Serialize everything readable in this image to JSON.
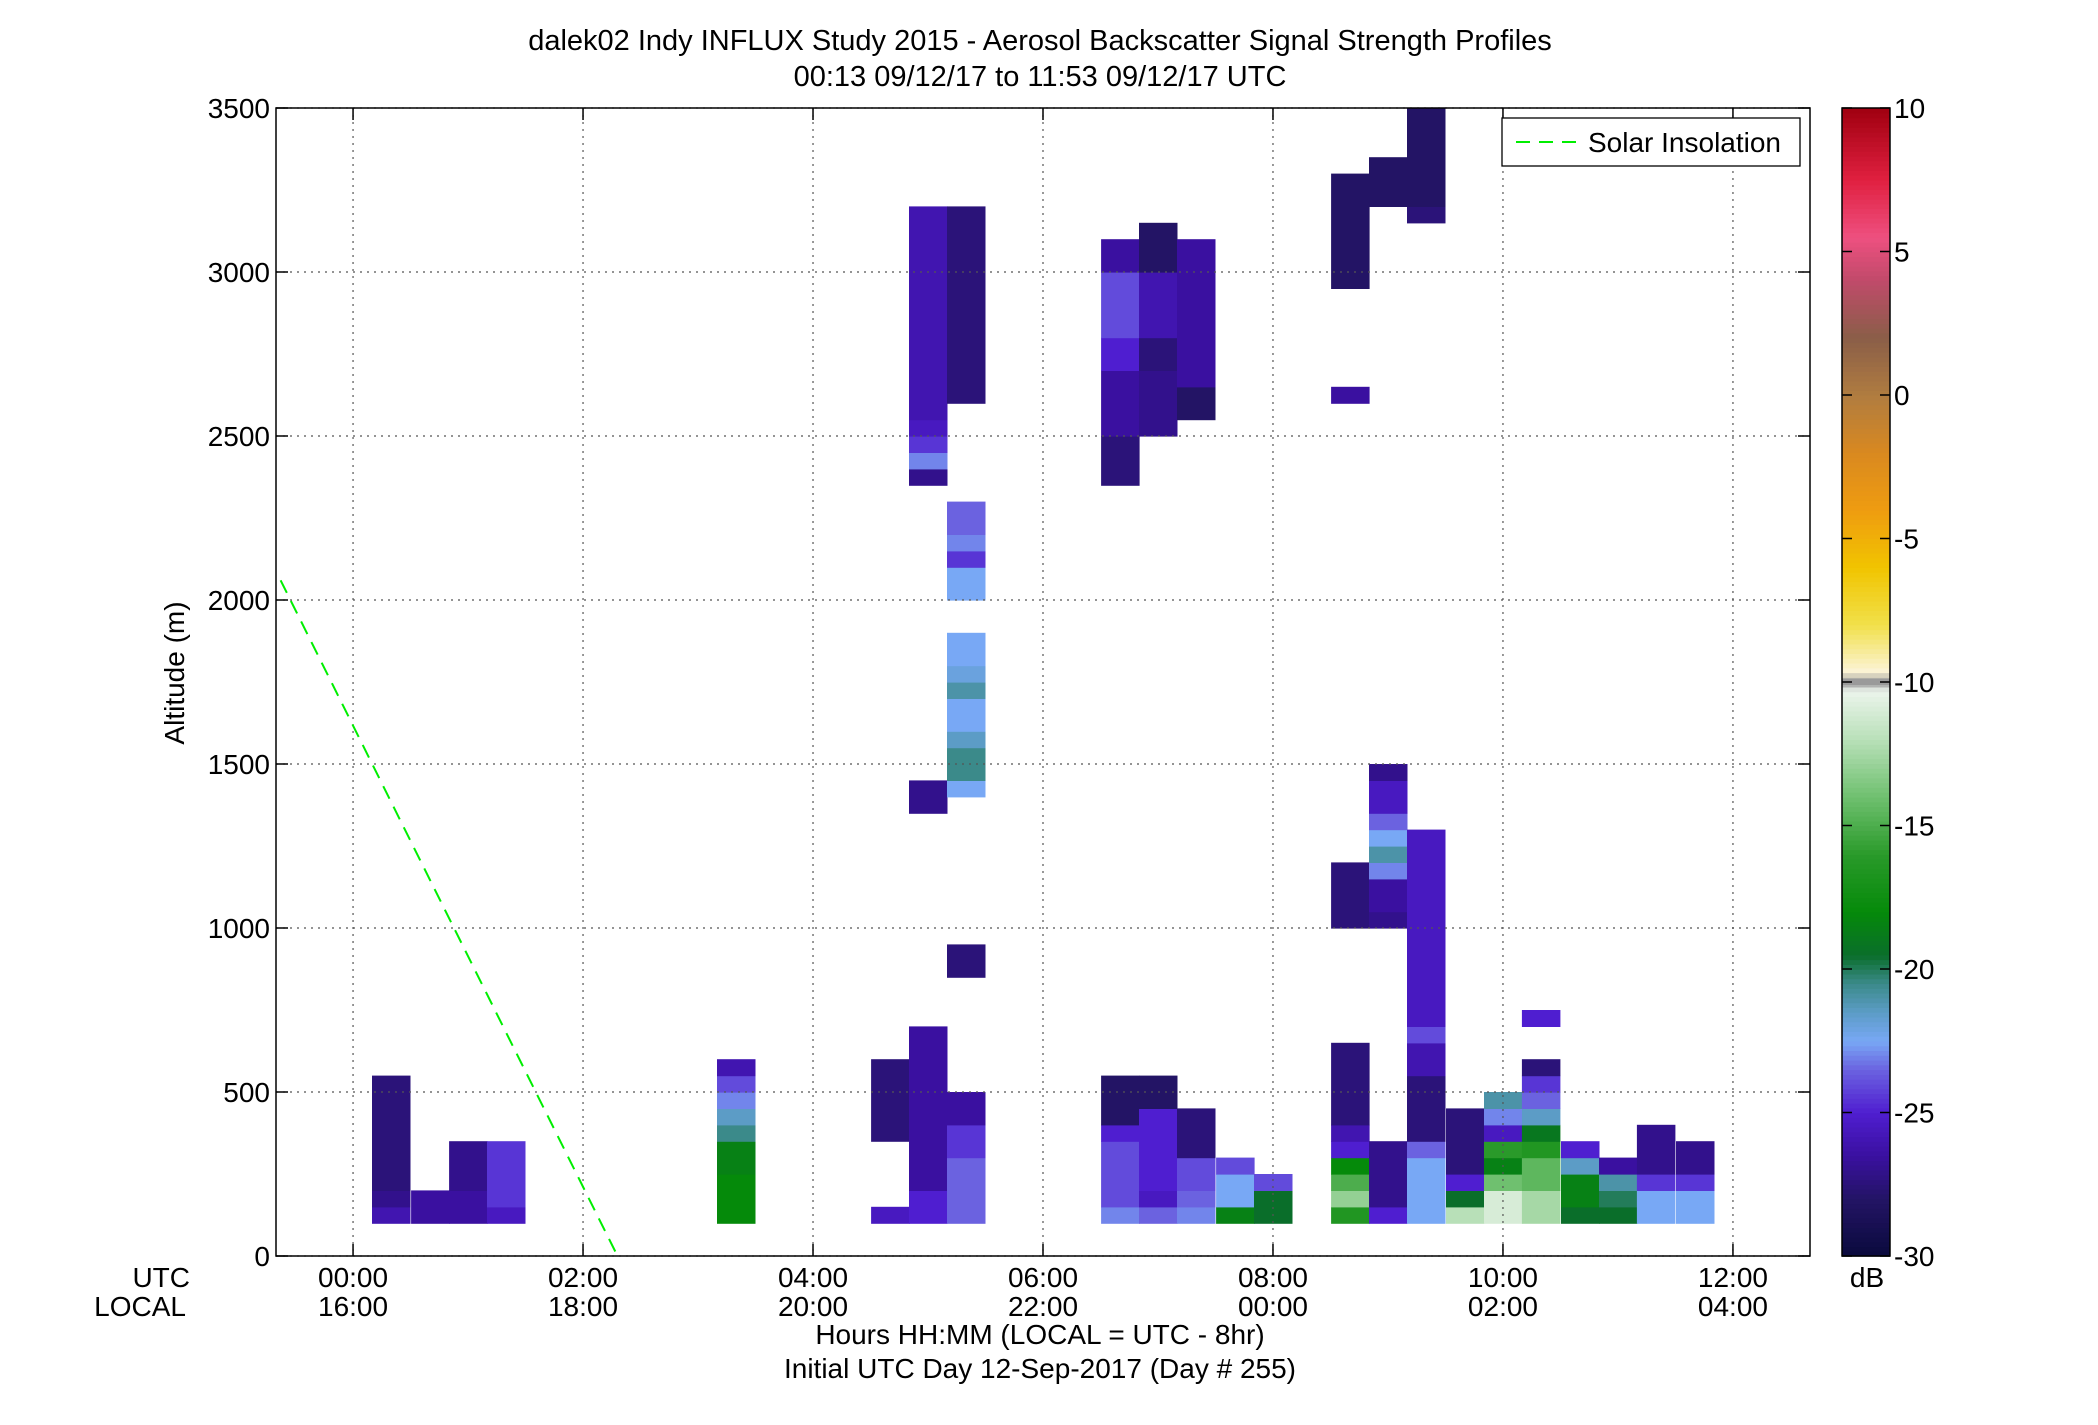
{
  "chart_data": {
    "type": "heatmap",
    "title": "dalek02 Indy INFLUX Study 2015 - Aerosol Backscatter Signal Strength Profiles",
    "subtitle": "00:13 09/12/17 to 11:53 09/12/17  UTC",
    "ylabel": "Altitude (m)",
    "xlabel": "Hours HH:MM  (LOCAL = UTC - 8hr)",
    "footer": "Initial UTC Day 12-Sep-2017 (Day # 255)",
    "xlim_hours_utc": [
      -0.67,
      12.67
    ],
    "ylim": [
      0,
      3500
    ],
    "y_ticks": [
      0,
      500,
      1000,
      1500,
      2000,
      2500,
      3000,
      3500
    ],
    "x_ticks": [
      {
        "hour": 0,
        "utc": "00:00",
        "local": "16:00"
      },
      {
        "hour": 2,
        "utc": "02:00",
        "local": "18:00"
      },
      {
        "hour": 4,
        "utc": "04:00",
        "local": "20:00"
      },
      {
        "hour": 6,
        "utc": "06:00",
        "local": "22:00"
      },
      {
        "hour": 8,
        "utc": "08:00",
        "local": "00:00"
      },
      {
        "hour": 10,
        "utc": "10:00",
        "local": "02:00"
      },
      {
        "hour": 12,
        "utc": "12:00",
        "local": "04:00"
      }
    ],
    "x_row_labels": {
      "utc": "UTC",
      "local": "LOCAL"
    },
    "grid": true,
    "legend": {
      "position": "top-right",
      "entries": [
        "Solar Insolation"
      ]
    },
    "solar_insolation": {
      "color": "#00ee00",
      "x_hours": [
        -0.63,
        2.3
      ],
      "y_m": [
        2060,
        0
      ]
    },
    "colorbar": {
      "unit": "dB",
      "range": [
        -30,
        10
      ],
      "ticks": [
        10,
        5,
        0,
        -5,
        -10,
        -15,
        -20,
        -25,
        -30
      ],
      "highlight_dB": -10,
      "stops": [
        {
          "v": -30,
          "c": "#0a0a3c"
        },
        {
          "v": -28,
          "c": "#231465"
        },
        {
          "v": -26.5,
          "c": "#3a10a0"
        },
        {
          "v": -25,
          "c": "#4f1ed0"
        },
        {
          "v": -23.5,
          "c": "#6b62e0"
        },
        {
          "v": -22.5,
          "c": "#78a8f5"
        },
        {
          "v": -21.5,
          "c": "#5c9cc6"
        },
        {
          "v": -20.5,
          "c": "#3b8a8a"
        },
        {
          "v": -19.5,
          "c": "#0a6e2a"
        },
        {
          "v": -18,
          "c": "#058a0a"
        },
        {
          "v": -16,
          "c": "#2a9a2a"
        },
        {
          "v": -14,
          "c": "#6fc06f"
        },
        {
          "v": -12,
          "c": "#b8e0b8"
        },
        {
          "v": -10.3,
          "c": "#ecf4ec"
        },
        {
          "v": -10,
          "c": "#9a9a9a"
        },
        {
          "v": -9.6,
          "c": "#fbf3d4"
        },
        {
          "v": -8,
          "c": "#f1e04a"
        },
        {
          "v": -6,
          "c": "#f1c400"
        },
        {
          "v": -4,
          "c": "#ef9c10"
        },
        {
          "v": -2,
          "c": "#d98920"
        },
        {
          "v": 0,
          "c": "#b07c40"
        },
        {
          "v": 2,
          "c": "#8a5e48"
        },
        {
          "v": 4,
          "c": "#c04a6a"
        },
        {
          "v": 5.5,
          "c": "#ee5080"
        },
        {
          "v": 7.5,
          "c": "#e02040"
        },
        {
          "v": 10,
          "c": "#a00010"
        }
      ]
    },
    "cell_width_hours": 0.33,
    "cell_height_m": 50,
    "columns": [
      {
        "t": 0.33,
        "cells": [
          [
            100,
            150,
            -26
          ],
          [
            150,
            200,
            -27
          ],
          [
            200,
            550,
            -27.5
          ]
        ]
      },
      {
        "t": 0.67,
        "cells": [
          [
            100,
            200,
            -26.5
          ]
        ]
      },
      {
        "t": 1.0,
        "cells": [
          [
            100,
            200,
            -26.5
          ],
          [
            200,
            350,
            -27
          ]
        ]
      },
      {
        "t": 1.33,
        "cells": [
          [
            100,
            150,
            -25.5
          ],
          [
            150,
            350,
            -24.5
          ]
        ]
      },
      {
        "t": 3.33,
        "cells": [
          [
            100,
            250,
            -18
          ],
          [
            250,
            350,
            -18.5
          ],
          [
            350,
            400,
            -20.5
          ],
          [
            400,
            450,
            -21.5
          ],
          [
            450,
            500,
            -23
          ],
          [
            500,
            550,
            -24
          ],
          [
            550,
            600,
            -26
          ]
        ]
      },
      {
        "t": 4.67,
        "cells": [
          [
            100,
            150,
            -25.5
          ],
          [
            350,
            600,
            -27.5
          ]
        ]
      },
      {
        "t": 5.0,
        "cells": [
          [
            100,
            200,
            -25
          ],
          [
            200,
            700,
            -26.5
          ],
          [
            1350,
            1450,
            -27
          ],
          [
            2350,
            2400,
            -27
          ],
          [
            2400,
            2450,
            -23
          ],
          [
            2450,
            2500,
            -24.5
          ],
          [
            2500,
            2550,
            -25.5
          ],
          [
            2550,
            3200,
            -26
          ]
        ]
      },
      {
        "t": 5.33,
        "cells": [
          [
            100,
            300,
            -23.5
          ],
          [
            300,
            400,
            -24.5
          ],
          [
            400,
            500,
            -26.5
          ],
          [
            850,
            950,
            -27.5
          ],
          [
            1400,
            1450,
            -22.5
          ],
          [
            1450,
            1500,
            -20.5
          ],
          [
            1500,
            1550,
            -20.5
          ],
          [
            1550,
            1600,
            -21.5
          ],
          [
            1600,
            1700,
            -22.5
          ],
          [
            1700,
            1750,
            -21
          ],
          [
            1750,
            1800,
            -22
          ],
          [
            1800,
            1900,
            -22.5
          ],
          [
            2000,
            2100,
            -22.5
          ],
          [
            2100,
            2150,
            -24.5
          ],
          [
            2150,
            2200,
            -23
          ],
          [
            2200,
            2300,
            -23.5
          ],
          [
            2600,
            3200,
            -27.5
          ]
        ]
      },
      {
        "t": 6.67,
        "cells": [
          [
            100,
            150,
            -23
          ],
          [
            150,
            350,
            -24
          ],
          [
            350,
            400,
            -25
          ],
          [
            400,
            550,
            -28
          ],
          [
            2350,
            2500,
            -27.5
          ],
          [
            2500,
            2700,
            -26.5
          ],
          [
            2700,
            2800,
            -25
          ],
          [
            2800,
            3000,
            -24
          ],
          [
            3000,
            3100,
            -26.5
          ]
        ]
      },
      {
        "t": 7.0,
        "cells": [
          [
            100,
            150,
            -23.5
          ],
          [
            150,
            200,
            -25.5
          ],
          [
            200,
            450,
            -25
          ],
          [
            450,
            550,
            -28
          ],
          [
            2500,
            2700,
            -27
          ],
          [
            2700,
            2800,
            -27.5
          ],
          [
            2800,
            3000,
            -26
          ],
          [
            3000,
            3150,
            -28
          ]
        ]
      },
      {
        "t": 7.33,
        "cells": [
          [
            100,
            150,
            -23
          ],
          [
            150,
            200,
            -23.5
          ],
          [
            200,
            300,
            -24
          ],
          [
            300,
            450,
            -27.5
          ],
          [
            2550,
            2650,
            -28
          ],
          [
            2650,
            3100,
            -26.5
          ]
        ]
      },
      {
        "t": 7.67,
        "cells": [
          [
            100,
            150,
            -18.5
          ],
          [
            150,
            250,
            -22.5
          ],
          [
            250,
            300,
            -24
          ]
        ]
      },
      {
        "t": 8.0,
        "cells": [
          [
            100,
            200,
            -19.5
          ],
          [
            200,
            250,
            -24
          ]
        ]
      },
      {
        "t": 8.67,
        "cells": [
          [
            100,
            150,
            -16.5
          ],
          [
            150,
            200,
            -13
          ],
          [
            200,
            250,
            -15
          ],
          [
            250,
            300,
            -18
          ],
          [
            300,
            350,
            -25
          ],
          [
            350,
            400,
            -26
          ],
          [
            400,
            650,
            -27.5
          ],
          [
            1000,
            1200,
            -27.5
          ],
          [
            2600,
            2650,
            -26.5
          ],
          [
            2950,
            3300,
            -28
          ]
        ]
      },
      {
        "t": 9.0,
        "cells": [
          [
            100,
            150,
            -25
          ],
          [
            150,
            350,
            -27
          ],
          [
            1000,
            1050,
            -27
          ],
          [
            1050,
            1150,
            -26.5
          ],
          [
            1150,
            1200,
            -23
          ],
          [
            1200,
            1250,
            -21
          ],
          [
            1250,
            1300,
            -22.5
          ],
          [
            1300,
            1350,
            -23.5
          ],
          [
            1350,
            1450,
            -25.5
          ],
          [
            1450,
            1500,
            -27
          ],
          [
            3200,
            3350,
            -28
          ]
        ]
      },
      {
        "t": 9.33,
        "cells": [
          [
            100,
            200,
            -22.5
          ],
          [
            200,
            300,
            -22.5
          ],
          [
            300,
            350,
            -23.5
          ],
          [
            350,
            550,
            -27.5
          ],
          [
            550,
            650,
            -26
          ],
          [
            650,
            700,
            -24
          ],
          [
            700,
            1300,
            -25.5
          ],
          [
            3150,
            3200,
            -27.5
          ],
          [
            3200,
            3500,
            -28
          ]
        ]
      },
      {
        "t": 9.67,
        "cells": [
          [
            100,
            150,
            -12
          ],
          [
            150,
            200,
            -19.5
          ],
          [
            200,
            250,
            -25
          ],
          [
            250,
            450,
            -27.5
          ]
        ]
      },
      {
        "t": 10.0,
        "cells": [
          [
            100,
            200,
            -11
          ],
          [
            200,
            250,
            -14
          ],
          [
            250,
            300,
            -18.5
          ],
          [
            300,
            350,
            -16
          ],
          [
            350,
            400,
            -25.5
          ],
          [
            400,
            450,
            -23
          ],
          [
            450,
            500,
            -21
          ]
        ]
      },
      {
        "t": 10.33,
        "cells": [
          [
            100,
            200,
            -12.5
          ],
          [
            200,
            300,
            -14.5
          ],
          [
            300,
            350,
            -16.5
          ],
          [
            350,
            400,
            -19
          ],
          [
            400,
            450,
            -21.5
          ],
          [
            450,
            500,
            -23.5
          ],
          [
            500,
            550,
            -24.5
          ],
          [
            550,
            600,
            -27.5
          ],
          [
            700,
            750,
            -25
          ]
        ]
      },
      {
        "t": 10.67,
        "cells": [
          [
            100,
            150,
            -19.5
          ],
          [
            150,
            250,
            -18.5
          ],
          [
            250,
            300,
            -21.5
          ],
          [
            300,
            350,
            -25
          ]
        ]
      },
      {
        "t": 11.0,
        "cells": [
          [
            100,
            150,
            -19.5
          ],
          [
            150,
            200,
            -20
          ],
          [
            200,
            250,
            -21
          ],
          [
            250,
            300,
            -26.5
          ]
        ]
      },
      {
        "t": 11.33,
        "cells": [
          [
            100,
            200,
            -22.5
          ],
          [
            200,
            250,
            -24.5
          ],
          [
            250,
            400,
            -27
          ]
        ]
      },
      {
        "t": 11.67,
        "cells": [
          [
            100,
            200,
            -22.5
          ],
          [
            200,
            250,
            -24.5
          ],
          [
            250,
            350,
            -27
          ]
        ]
      }
    ]
  }
}
